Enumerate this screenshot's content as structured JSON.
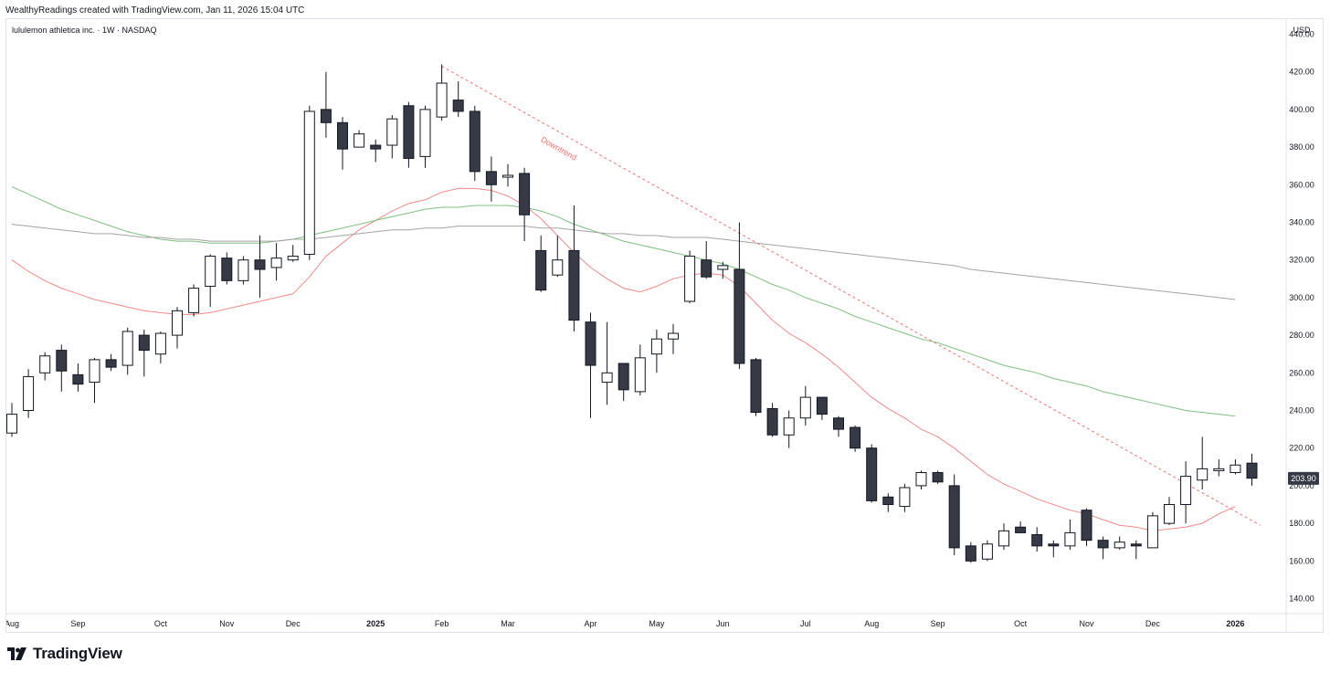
{
  "header": {
    "credit": "WealthyReadings created with TradingView.com, Jan 11, 2026 15:04 UTC"
  },
  "footer": {
    "brand": "TradingView",
    "logo_icon": "tradingview-logo-icon"
  },
  "colors": {
    "candle_up_fill": "#ffffff",
    "candle_down_fill": "#363a45",
    "candle_border": "#131722",
    "ma_red": "#ef8a8a",
    "ma_green": "#7fbf7f",
    "ma_gray": "#a3a3a3",
    "trendline": "#f07070",
    "price_badge": "#363a45"
  },
  "chart_data": {
    "type": "candlestick",
    "title": "lululemon athletica inc. · 1W · NASDAQ",
    "currency": "USD",
    "ylim": [
      132,
      448
    ],
    "y_ticks": [
      140,
      160,
      180,
      200,
      220,
      240,
      260,
      280,
      300,
      320,
      340,
      360,
      380,
      400,
      420,
      440
    ],
    "x_ticks": [
      {
        "label": "Aug",
        "index": 0,
        "bold": false
      },
      {
        "label": "Sep",
        "index": 4,
        "bold": false
      },
      {
        "label": "Oct",
        "index": 9,
        "bold": false
      },
      {
        "label": "Nov",
        "index": 13,
        "bold": false
      },
      {
        "label": "Dec",
        "index": 17,
        "bold": false
      },
      {
        "label": "2025",
        "index": 22,
        "bold": true
      },
      {
        "label": "Feb",
        "index": 26,
        "bold": false
      },
      {
        "label": "Mar",
        "index": 30,
        "bold": false
      },
      {
        "label": "Apr",
        "index": 35,
        "bold": false
      },
      {
        "label": "May",
        "index": 39,
        "bold": false
      },
      {
        "label": "Jun",
        "index": 43,
        "bold": false
      },
      {
        "label": "Jul",
        "index": 48,
        "bold": false
      },
      {
        "label": "Aug",
        "index": 52,
        "bold": false
      },
      {
        "label": "Sep",
        "index": 56,
        "bold": false
      },
      {
        "label": "Oct",
        "index": 61,
        "bold": false
      },
      {
        "label": "Nov",
        "index": 65,
        "bold": false
      },
      {
        "label": "Dec",
        "index": 69,
        "bold": false
      },
      {
        "label": "2026",
        "index": 74,
        "bold": true
      }
    ],
    "last_price": 203.9,
    "last_price_label": "203.90",
    "candles": [
      [
        228,
        238,
        244,
        226
      ],
      [
        240,
        258,
        262,
        236
      ],
      [
        260,
        269,
        271,
        256
      ],
      [
        272,
        261,
        275,
        250
      ],
      [
        259,
        254,
        265,
        250
      ],
      [
        255,
        267,
        268,
        244
      ],
      [
        267,
        263,
        270,
        261
      ],
      [
        264,
        282,
        284,
        259
      ],
      [
        280,
        272,
        283,
        258
      ],
      [
        270,
        281,
        282,
        265
      ],
      [
        280,
        293,
        295,
        273
      ],
      [
        292,
        305,
        307,
        290
      ],
      [
        306,
        322,
        323,
        295
      ],
      [
        321,
        309,
        324,
        307
      ],
      [
        309,
        320,
        322,
        307
      ],
      [
        320,
        315,
        333,
        300
      ],
      [
        316,
        321,
        329,
        309
      ],
      [
        320,
        322,
        328,
        319
      ],
      [
        323,
        399,
        402,
        320
      ],
      [
        400,
        393,
        420,
        385
      ],
      [
        393,
        379,
        396,
        368
      ],
      [
        380,
        387,
        389,
        380
      ],
      [
        381,
        379,
        384,
        372
      ],
      [
        381,
        395,
        397,
        374
      ],
      [
        402,
        374,
        404,
        369
      ],
      [
        375,
        400,
        402,
        369
      ],
      [
        396,
        414,
        424,
        394
      ],
      [
        405,
        399,
        415,
        396
      ],
      [
        399,
        367,
        402,
        362
      ],
      [
        367,
        360,
        375,
        351
      ],
      [
        364,
        365,
        371,
        359
      ],
      [
        366,
        344,
        369,
        330
      ],
      [
        325,
        304,
        333,
        303
      ],
      [
        312,
        320,
        333,
        311
      ],
      [
        325,
        288,
        349,
        282
      ],
      [
        287,
        264,
        292,
        236
      ],
      [
        255,
        260,
        287,
        243
      ],
      [
        265,
        251,
        265,
        245
      ],
      [
        250,
        268,
        275,
        248
      ],
      [
        270,
        278,
        283,
        260
      ],
      [
        278,
        281,
        286,
        270
      ],
      [
        298,
        322,
        325,
        297
      ],
      [
        320,
        311,
        330,
        310
      ],
      [
        315,
        317,
        319,
        310
      ],
      [
        315,
        265,
        340,
        262
      ],
      [
        267,
        239,
        268,
        237
      ],
      [
        241,
        227,
        244,
        226
      ],
      [
        227,
        236,
        240,
        220
      ],
      [
        236,
        247,
        253,
        232
      ],
      [
        247,
        238,
        247,
        235
      ],
      [
        236,
        230,
        237,
        226
      ],
      [
        231,
        220,
        232,
        218
      ],
      [
        220,
        192,
        222,
        191
      ],
      [
        194,
        190,
        196,
        186
      ],
      [
        189,
        199,
        201,
        186
      ],
      [
        200,
        207,
        208,
        198
      ],
      [
        207,
        202,
        208,
        201
      ],
      [
        200,
        167,
        206,
        163
      ],
      [
        168,
        160,
        170,
        159
      ],
      [
        161,
        169,
        171,
        160
      ],
      [
        168,
        176,
        180,
        166
      ],
      [
        178,
        175,
        181,
        175
      ],
      [
        174,
        168,
        178,
        165
      ],
      [
        169,
        168,
        171,
        162
      ],
      [
        168,
        175,
        182,
        166
      ],
      [
        187,
        171,
        188,
        168
      ],
      [
        171,
        167,
        173,
        161
      ],
      [
        167,
        170,
        173,
        166
      ],
      [
        169,
        168,
        171,
        161
      ],
      [
        167,
        184,
        186,
        167
      ],
      [
        180,
        190,
        194,
        179
      ],
      [
        190,
        205,
        213,
        180
      ],
      [
        203,
        209,
        226,
        198
      ],
      [
        208,
        209,
        214,
        205
      ],
      [
        207,
        211,
        214,
        206
      ],
      [
        212,
        204,
        217,
        200
      ]
    ],
    "series": [
      {
        "type": "line",
        "color": "#ef8a8a",
        "values": [
          320,
          314,
          309,
          305,
          302,
          299,
          297,
          295,
          293,
          292,
          291,
          291,
          292,
          294,
          296,
          298,
          300,
          302,
          311,
          322,
          329,
          336,
          341,
          346,
          350,
          352,
          356,
          358,
          358,
          357,
          354,
          349,
          342,
          333,
          324,
          316,
          310,
          305,
          303,
          306,
          310,
          312,
          313,
          312,
          306,
          297,
          288,
          281,
          276,
          270,
          263,
          255,
          247,
          241,
          236,
          230,
          226,
          220,
          213,
          206,
          201,
          197,
          193,
          190,
          187,
          185,
          182,
          179,
          178,
          176,
          177,
          178,
          180,
          185,
          189
        ]
      },
      {
        "type": "line",
        "color": "#7fbf7f",
        "values": [
          359,
          355,
          351,
          347,
          344,
          341,
          338,
          335,
          333,
          331,
          330,
          330,
          329,
          329,
          329,
          329,
          330,
          331,
          333,
          335,
          337,
          339,
          341,
          343,
          345,
          347,
          348,
          348,
          349,
          349,
          349,
          348,
          346,
          343,
          339,
          336,
          333,
          330,
          328,
          326,
          324,
          322,
          320,
          318,
          315,
          311,
          307,
          304,
          300,
          297,
          294,
          290,
          287,
          284,
          281,
          278,
          276,
          273,
          270,
          267,
          264,
          262,
          260,
          257,
          255,
          253,
          250,
          248,
          246,
          244,
          242,
          240,
          239,
          238,
          237
        ]
      },
      {
        "type": "line",
        "color": "#a3a3a3",
        "values": [
          339,
          338,
          337,
          336,
          335,
          334,
          334,
          333,
          332,
          332,
          331,
          331,
          330,
          330,
          330,
          330,
          330,
          331,
          331,
          332,
          333,
          334,
          335,
          336,
          336,
          337,
          337,
          338,
          338,
          338,
          338,
          338,
          337,
          337,
          336,
          335,
          334,
          334,
          333,
          333,
          332,
          332,
          332,
          331,
          330,
          329,
          328,
          327,
          326,
          325,
          324,
          323,
          322,
          321,
          320,
          319,
          318,
          317,
          315,
          314,
          313,
          312,
          311,
          310,
          309,
          308,
          307,
          306,
          305,
          304,
          303,
          302,
          301,
          300,
          299
        ]
      }
    ],
    "trendline": {
      "from": {
        "index": 26,
        "value": 423
      },
      "to": {
        "index": 75.5,
        "value": 179
      },
      "style": "dashed"
    },
    "annotations": [
      {
        "text": "Downtrend",
        "index": 33,
        "value": 378
      }
    ]
  }
}
